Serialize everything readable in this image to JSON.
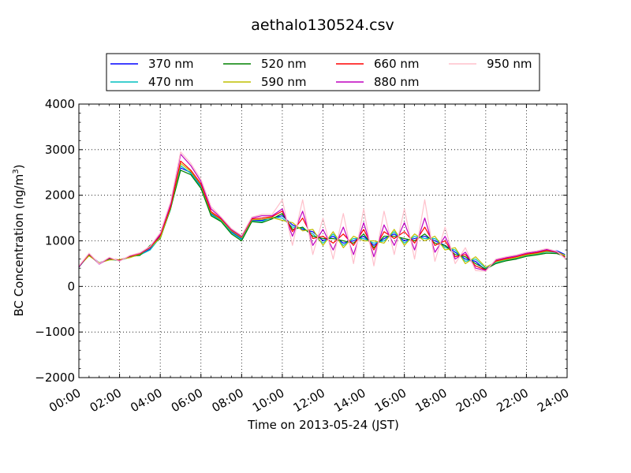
{
  "chart_data": {
    "type": "line",
    "title": "aethalo130524.csv",
    "xlabel": "Time on 2013-05-24 (JST)",
    "ylabel_main": "BC Concentration (ng/m",
    "ylabel_sup": "3",
    "ylabel_end": ")",
    "xlim": [
      0,
      24
    ],
    "ylim": [
      -2000,
      4000
    ],
    "x_tick_values": [
      0,
      2,
      4,
      6,
      8,
      10,
      12,
      14,
      16,
      18,
      20,
      22,
      24
    ],
    "x_tick_labels": [
      "00:00",
      "02:00",
      "04:00",
      "06:00",
      "08:00",
      "10:00",
      "12:00",
      "14:00",
      "16:00",
      "18:00",
      "20:00",
      "22:00",
      "24:00"
    ],
    "y_tick_values": [
      -2000,
      -1000,
      0,
      1000,
      2000,
      3000,
      4000
    ],
    "y_tick_labels": [
      "−2000",
      "−1000",
      "0",
      "1000",
      "2000",
      "3000",
      "4000"
    ],
    "grid": true,
    "legend_position": "top",
    "x_hours": [
      0,
      0.5,
      1,
      1.5,
      2,
      2.5,
      3,
      3.5,
      4,
      4.5,
      5,
      5.5,
      6,
      6.5,
      7,
      7.5,
      8,
      8.5,
      9,
      9.5,
      10,
      10.5,
      11,
      11.5,
      12,
      12.5,
      13,
      13.5,
      14,
      14.5,
      15,
      15.5,
      16,
      16.5,
      17,
      17.5,
      18,
      18.5,
      19,
      19.5,
      20,
      20.5,
      21,
      21.5,
      22,
      22.5,
      23,
      23.5,
      23.9
    ],
    "series": [
      {
        "name": "370 nm",
        "color": "#0000ff",
        "values": [
          420,
          700,
          520,
          600,
          580,
          650,
          700,
          820,
          1100,
          1700,
          2600,
          2500,
          2200,
          1600,
          1450,
          1200,
          1050,
          1450,
          1450,
          1500,
          1550,
          1350,
          1250,
          1200,
          1000,
          1100,
          950,
          1000,
          1100,
          900,
          1050,
          1150,
          1000,
          1050,
          1100,
          1000,
          900,
          750,
          600,
          550,
          350,
          550,
          600,
          600,
          700,
          720,
          780,
          780,
          700
        ]
      },
      {
        "name": "470 nm",
        "color": "#00bfbf",
        "values": [
          430,
          680,
          510,
          590,
          570,
          640,
          690,
          800,
          1080,
          1680,
          2650,
          2480,
          2180,
          1580,
          1440,
          1180,
          1030,
          1430,
          1420,
          1520,
          1500,
          1300,
          1280,
          1150,
          950,
          1150,
          900,
          1050,
          1050,
          950,
          1000,
          1200,
          950,
          1100,
          1050,
          1050,
          850,
          800,
          550,
          600,
          400,
          520,
          580,
          620,
          680,
          700,
          760,
          740,
          690
        ]
      },
      {
        "name": "520 nm",
        "color": "#008000",
        "values": [
          440,
          690,
          500,
          610,
          560,
          660,
          680,
          900,
          1050,
          1700,
          2550,
          2450,
          2150,
          1550,
          1420,
          1150,
          1000,
          1420,
          1400,
          1480,
          1600,
          1250,
          1300,
          1100,
          1050,
          1050,
          1000,
          950,
          1150,
          850,
          1100,
          1100,
          1050,
          1000,
          1150,
          950,
          900,
          700,
          650,
          500,
          380,
          500,
          560,
          600,
          660,
          690,
          730,
          720,
          660
        ]
      },
      {
        "name": "590 nm",
        "color": "#bfbf00",
        "values": [
          450,
          670,
          520,
          580,
          590,
          630,
          710,
          850,
          1070,
          1720,
          2700,
          2520,
          2230,
          1620,
          1460,
          1220,
          1070,
          1460,
          1470,
          1510,
          1450,
          1400,
          1220,
          1250,
          900,
          1200,
          850,
          1100,
          1000,
          1000,
          950,
          1250,
          900,
          1150,
          1000,
          1100,
          800,
          850,
          500,
          650,
          420,
          540,
          590,
          630,
          690,
          720,
          770,
          760,
          680
        ]
      },
      {
        "name": "660 nm",
        "color": "#ff0000",
        "values": [
          430,
          710,
          500,
          620,
          570,
          660,
          720,
          860,
          1120,
          1740,
          2750,
          2550,
          2250,
          1640,
          1480,
          1240,
          1090,
          1480,
          1500,
          1530,
          1650,
          1200,
          1500,
          1050,
          1100,
          950,
          1150,
          900,
          1250,
          800,
          1200,
          1050,
          1200,
          950,
          1300,
          900,
          1000,
          650,
          700,
          450,
          360,
          560,
          610,
          650,
          710,
          740,
          790,
          750,
          640
        ]
      },
      {
        "name": "880 nm",
        "color": "#bf00bf",
        "values": [
          440,
          720,
          490,
          630,
          560,
          670,
          730,
          870,
          1150,
          1800,
          2900,
          2650,
          2300,
          1700,
          1500,
          1250,
          1100,
          1500,
          1550,
          1550,
          1700,
          1100,
          1650,
          900,
          1250,
          800,
          1300,
          700,
          1400,
          650,
          1350,
          900,
          1400,
          800,
          1500,
          750,
          1100,
          600,
          750,
          400,
          350,
          580,
          630,
          670,
          730,
          760,
          810,
          760,
          620
        ]
      },
      {
        "name": "950 nm",
        "color": "#ffc0cb",
        "values": [
          450,
          730,
          500,
          640,
          550,
          680,
          740,
          880,
          1180,
          1850,
          2950,
          2700,
          2350,
          1750,
          1520,
          1270,
          1120,
          1520,
          1580,
          1580,
          1900,
          900,
          1900,
          700,
          1500,
          600,
          1600,
          500,
          1700,
          450,
          1650,
          700,
          1700,
          600,
          1900,
          550,
          1300,
          500,
          850,
          350,
          330,
          600,
          650,
          690,
          750,
          780,
          830,
          770,
          610
        ]
      }
    ]
  }
}
